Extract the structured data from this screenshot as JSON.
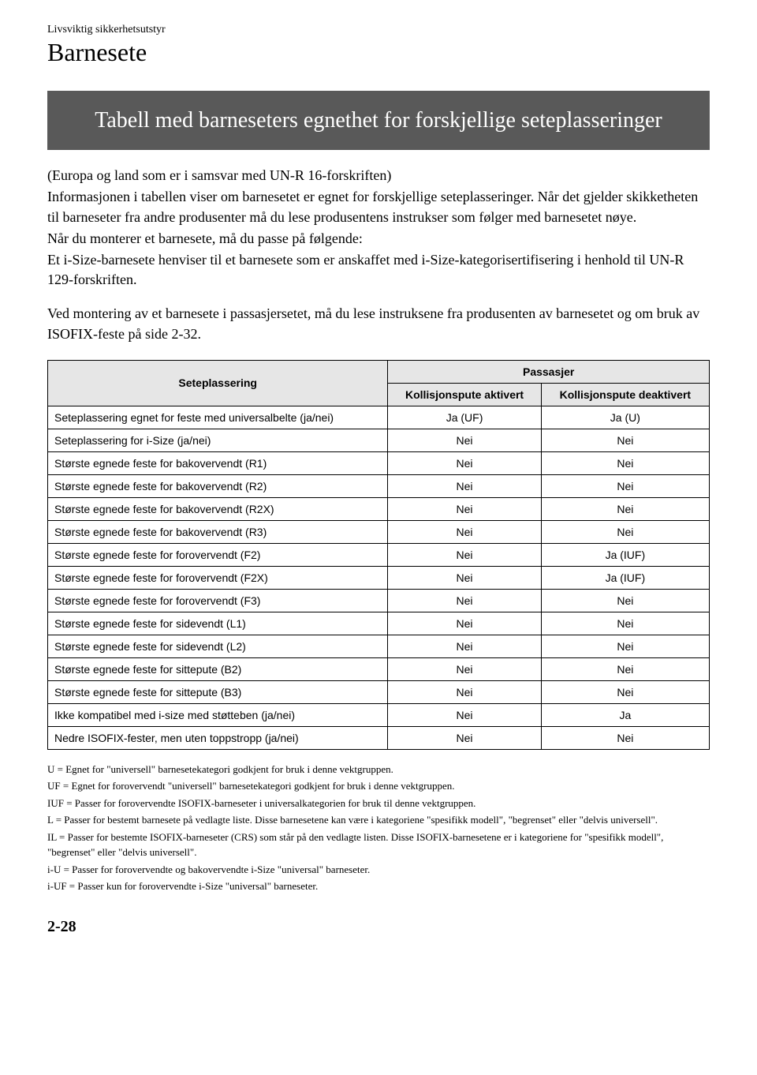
{
  "header": {
    "small": "Livsviktig sikkerhetsutstyr",
    "large": "Barnesete"
  },
  "titleBox": "Tabell med barneseters egnethet for forskjellige seteplasseringer",
  "intro": {
    "line1": "(Europa og land som er i samsvar med UN-R 16-forskriften)",
    "line2": "Informasjonen i tabellen viser om barnesetet er egnet for forskjellige seteplasseringer. Når det gjelder skikketheten til barneseter fra andre produsenter må du lese produsentens instrukser som følger med barnesetet nøye.",
    "line3": "Når du monterer et barnesete, må du passe på følgende:",
    "line4": "Et i-Size-barnesete henviser til et barnesete som er anskaffet med i-Size-kategorisertifisering i henhold til UN-R 129-forskriften.",
    "line5": "Ved montering av et barnesete i passasjersetet, må du lese instruksene fra produsenten av barnesetet og om bruk av ISOFIX-feste på side 2-32."
  },
  "table": {
    "headers": {
      "col1": "Seteplassering",
      "col2": "Passasjer",
      "sub1": "Kollisjonspute aktivert",
      "sub2": "Kollisjonspute deaktivert"
    },
    "rows": [
      {
        "label": "Seteplassering egnet for feste med universalbelte (ja/nei)",
        "v1": "Ja (UF)",
        "v2": "Ja (U)"
      },
      {
        "label": "Seteplassering for i-Size (ja/nei)",
        "v1": "Nei",
        "v2": "Nei"
      },
      {
        "label": "Største egnede feste for bakovervendt (R1)",
        "v1": "Nei",
        "v2": "Nei"
      },
      {
        "label": "Største egnede feste for bakovervendt (R2)",
        "v1": "Nei",
        "v2": "Nei"
      },
      {
        "label": "Største egnede feste for bakovervendt (R2X)",
        "v1": "Nei",
        "v2": "Nei"
      },
      {
        "label": "Største egnede feste for bakovervendt (R3)",
        "v1": "Nei",
        "v2": "Nei"
      },
      {
        "label": "Største egnede feste for forovervendt (F2)",
        "v1": "Nei",
        "v2": "Ja (IUF)"
      },
      {
        "label": "Største egnede feste for forovervendt (F2X)",
        "v1": "Nei",
        "v2": "Ja (IUF)"
      },
      {
        "label": "Største egnede feste for forovervendt (F3)",
        "v1": "Nei",
        "v2": "Nei"
      },
      {
        "label": "Største egnede feste for sidevendt (L1)",
        "v1": "Nei",
        "v2": "Nei"
      },
      {
        "label": "Største egnede feste for sidevendt (L2)",
        "v1": "Nei",
        "v2": "Nei"
      },
      {
        "label": "Største egnede feste for sittepute (B2)",
        "v1": "Nei",
        "v2": "Nei"
      },
      {
        "label": "Største egnede feste for sittepute (B3)",
        "v1": "Nei",
        "v2": "Nei"
      },
      {
        "label": "Ikke kompatibel med i-size med støtteben (ja/nei)",
        "v1": "Nei",
        "v2": "Ja"
      },
      {
        "label": "Nedre ISOFIX-fester, men uten toppstropp (ja/nei)",
        "v1": "Nei",
        "v2": "Nei"
      }
    ]
  },
  "footnotes": {
    "f1": "U = Egnet for \"universell\" barnesetekategori godkjent for bruk i denne vektgruppen.",
    "f2": "UF = Egnet for forovervendt \"universell\" barnesetekategori godkjent for bruk i denne vektgruppen.",
    "f3": "IUF = Passer for forovervendte ISOFIX-barneseter i universalkategorien for bruk til denne vektgruppen.",
    "f4": "L = Passer for bestemt barnesete på vedlagte liste. Disse barnesetene kan være i kategoriene \"spesifikk modell\", \"begrenset\" eller \"delvis universell\".",
    "f5": "IL = Passer for bestemte ISOFIX-barneseter (CRS) som står på den vedlagte listen. Disse ISOFIX-barnesetene er i kategoriene for \"spesifikk modell\", \"begrenset\" eller \"delvis universell\".",
    "f6": "i-U = Passer for forovervendte og bakovervendte i-Size \"universal\" barneseter.",
    "f7": "i-UF = Passer kun for forovervendte i-Size \"universal\" barneseter."
  },
  "pageNum": "2-28"
}
